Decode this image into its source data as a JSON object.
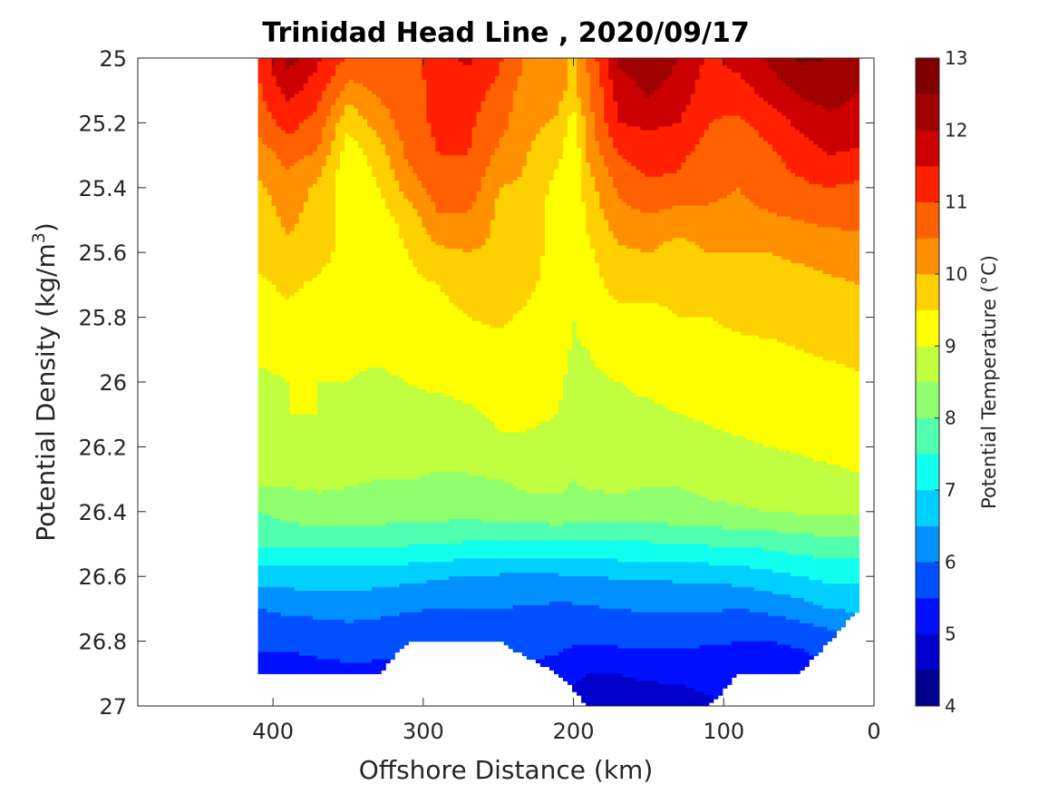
{
  "chart_data": {
    "type": "heatmap",
    "subtype": "filled-contour",
    "title": "Trinidad Head Line , 2020/09/17",
    "xlabel": "Offshore Distance (km)",
    "ylabel_prefix": "Potential Density (kg/m",
    "ylabel_exp": "3",
    "ylabel_suffix": ")",
    "xlim": [
      490,
      0
    ],
    "x_reversed": true,
    "ylim": [
      25,
      27
    ],
    "y_reversed": true,
    "x_ticks": [
      400,
      300,
      200,
      100,
      0
    ],
    "y_ticks": [
      25,
      25.2,
      25.4,
      25.6,
      25.8,
      26,
      26.2,
      26.4,
      26.6,
      26.8,
      27
    ],
    "x_tick_labels": [
      "400",
      "300",
      "200",
      "100",
      "0"
    ],
    "y_tick_labels": [
      "25",
      "25.2",
      "25.4",
      "25.6",
      "25.8",
      "26",
      "26.2",
      "26.4",
      "26.6",
      "26.8",
      "27"
    ],
    "grid": false,
    "colorbar": {
      "label": "Potential Temperature (°C)",
      "min": 4,
      "max": 13,
      "step": 0.5,
      "ticks": [
        4,
        5,
        6,
        7,
        8,
        9,
        10,
        11,
        12,
        13
      ],
      "tick_labels": [
        "4",
        "5",
        "6",
        "7",
        "8",
        "9",
        "10",
        "11",
        "12",
        "13"
      ],
      "colors": [
        "#00008f",
        "#0000cc",
        "#0010ff",
        "#0050ff",
        "#0090ff",
        "#00d0ff",
        "#10ffef",
        "#50ffaf",
        "#90ff6f",
        "#bfff40",
        "#ffff00",
        "#ffd000",
        "#ff9000",
        "#ff6000",
        "#ff2000",
        "#cc0000",
        "#9f0000",
        "#800000"
      ],
      "position": "right"
    },
    "x": [
      410,
      390,
      370,
      350,
      330,
      310,
      290,
      270,
      250,
      230,
      210,
      200,
      190,
      170,
      150,
      130,
      110,
      90,
      70,
      50,
      30,
      10
    ],
    "density": [
      25.0,
      25.1,
      25.2,
      25.3,
      25.4,
      25.5,
      25.6,
      25.7,
      25.8,
      25.9,
      26.0,
      26.1,
      26.2,
      26.3,
      26.4,
      26.5,
      26.6,
      26.7,
      26.8,
      26.9,
      27.0
    ],
    "temperature": [
      [
        11.1,
        12.2,
        11.6,
        10.9,
        10.6,
        10.8,
        11.3,
        11.6,
        11.1,
        10.4,
        10.2,
        9.9,
        10.6,
        12.1,
        12.4,
        12.0,
        11.4,
        11.7,
        12.1,
        12.6,
        12.5,
        12.3
      ],
      [
        10.9,
        11.7,
        11.2,
        10.3,
        10.6,
        10.8,
        11.1,
        11.2,
        10.9,
        10.2,
        10.1,
        9.9,
        10.4,
        11.7,
        12.1,
        11.8,
        11.2,
        11.3,
        11.7,
        12.1,
        12.2,
        12.0
      ],
      [
        10.7,
        11.2,
        10.8,
        9.6,
        10.2,
        10.8,
        11.1,
        11.1,
        10.7,
        10.1,
        9.95,
        9.2,
        10.3,
        11.5,
        11.6,
        11.5,
        11.0,
        10.9,
        11.2,
        11.6,
        11.9,
        11.8
      ],
      [
        10.2,
        10.7,
        10.4,
        9.2,
        9.7,
        10.6,
        11.0,
        11.0,
        10.4,
        10.0,
        9.6,
        9.1,
        10.1,
        11.0,
        11.2,
        11.1,
        10.8,
        10.6,
        10.9,
        11.2,
        11.5,
        11.4
      ],
      [
        9.9,
        10.3,
        9.9,
        9.1,
        9.5,
        10.2,
        10.8,
        10.8,
        10.0,
        9.9,
        9.3,
        9.1,
        9.8,
        10.6,
        10.9,
        10.9,
        10.7,
        10.5,
        10.8,
        10.9,
        11.0,
        10.9
      ],
      [
        9.7,
        10.1,
        9.8,
        9.2,
        9.2,
        9.7,
        10.4,
        10.4,
        9.9,
        9.8,
        9.2,
        9.05,
        9.6,
        10.3,
        10.4,
        10.2,
        10.3,
        10.3,
        10.4,
        10.5,
        10.6,
        10.6
      ],
      [
        9.7,
        9.9,
        9.7,
        9.3,
        9.2,
        9.5,
        9.9,
        10.0,
        9.9,
        9.7,
        9.3,
        9.0,
        9.4,
        9.9,
        10.0,
        9.8,
        10.0,
        10.0,
        10.0,
        10.1,
        10.2,
        10.3
      ],
      [
        9.4,
        9.6,
        9.4,
        9.25,
        9.2,
        9.35,
        9.5,
        9.8,
        9.8,
        9.6,
        9.25,
        9.0,
        9.3,
        9.7,
        9.6,
        9.6,
        9.7,
        9.8,
        9.8,
        9.8,
        9.9,
        10.0
      ],
      [
        9.2,
        9.4,
        9.2,
        9.15,
        9.1,
        9.2,
        9.3,
        9.5,
        9.6,
        9.4,
        9.2,
        9.0,
        9.15,
        9.35,
        9.4,
        9.5,
        9.5,
        9.6,
        9.6,
        9.6,
        9.7,
        9.8
      ],
      [
        9.1,
        9.15,
        9.1,
        9.05,
        9.05,
        9.1,
        9.15,
        9.25,
        9.35,
        9.3,
        9.15,
        8.95,
        9.0,
        9.15,
        9.2,
        9.3,
        9.35,
        9.4,
        9.45,
        9.5,
        9.55,
        9.6
      ],
      [
        8.9,
        9.0,
        9.0,
        9.0,
        8.95,
        9.0,
        9.05,
        9.1,
        9.15,
        9.2,
        9.05,
        8.9,
        8.95,
        9.0,
        9.05,
        9.1,
        9.15,
        9.2,
        9.3,
        9.35,
        9.4,
        9.45
      ],
      [
        8.95,
        9.0,
        9.0,
        8.95,
        8.95,
        8.95,
        8.9,
        8.95,
        9.05,
        9.1,
        9.0,
        8.85,
        8.9,
        8.95,
        8.95,
        9.0,
        9.05,
        9.1,
        9.15,
        9.2,
        9.3,
        9.3
      ],
      [
        8.7,
        8.75,
        8.75,
        8.75,
        8.7,
        8.7,
        8.7,
        8.75,
        8.95,
        8.9,
        8.8,
        8.7,
        8.75,
        8.85,
        8.9,
        8.85,
        8.9,
        8.95,
        9.0,
        9.05,
        9.1,
        9.2
      ],
      [
        8.6,
        8.6,
        8.6,
        8.55,
        8.5,
        8.5,
        8.45,
        8.45,
        8.5,
        8.6,
        8.6,
        8.5,
        8.6,
        8.65,
        8.55,
        8.55,
        8.65,
        8.7,
        8.75,
        8.85,
        8.9,
        8.95
      ],
      [
        8.0,
        8.2,
        8.35,
        8.35,
        8.3,
        8.25,
        8.2,
        8.2,
        8.25,
        8.35,
        8.4,
        8.35,
        8.3,
        8.3,
        8.3,
        8.35,
        8.4,
        8.45,
        8.5,
        8.55,
        8.6,
        8.6
      ],
      [
        7.6,
        7.6,
        7.6,
        7.55,
        7.55,
        7.55,
        7.5,
        7.45,
        7.4,
        7.4,
        7.4,
        7.4,
        7.45,
        7.45,
        7.45,
        7.5,
        7.55,
        7.6,
        7.65,
        7.75,
        7.8,
        7.8
      ],
      [
        6.7,
        6.75,
        6.75,
        6.75,
        6.7,
        6.65,
        6.55,
        6.5,
        6.45,
        6.4,
        6.45,
        6.5,
        6.5,
        6.55,
        6.55,
        6.6,
        6.65,
        6.7,
        6.85,
        7.0,
        7.15,
        7.15
      ],
      [
        6.0,
        6.1,
        6.15,
        6.2,
        6.15,
        6.05,
        6.0,
        6.0,
        6.0,
        5.95,
        5.9,
        5.9,
        5.95,
        6.0,
        6.05,
        6.05,
        6.05,
        6.0,
        6.1,
        6.25,
        6.5,
        6.6
      ],
      [
        5.6,
        5.6,
        5.65,
        5.7,
        5.65,
        5.6,
        5.6,
        5.6,
        5.65,
        5.65,
        5.6,
        5.55,
        5.55,
        5.6,
        5.6,
        5.6,
        5.55,
        5.5,
        5.5,
        5.55,
        5.7,
        5.7
      ],
      [
        5.3,
        5.3,
        5.35,
        5.4,
        5.4,
        5.4,
        5.4,
        5.4,
        5.4,
        5.4,
        5.35,
        5.2,
        5.0,
        5.0,
        5.1,
        5.1,
        5.2,
        5.3,
        5.3,
        5.3,
        5.4,
        5.4
      ],
      [
        5.0,
        5.0,
        5.0,
        5.0,
        5.0,
        5.0,
        5.0,
        5.0,
        5.0,
        4.9,
        4.8,
        4.6,
        4.6,
        4.7,
        4.7,
        4.8,
        4.9,
        5.0,
        5.0,
        5.0,
        5.0,
        5.0
      ]
    ],
    "deepest_density": [
      26.9,
      26.9,
      26.9,
      26.9,
      26.9,
      26.8,
      26.8,
      26.8,
      26.8,
      26.85,
      26.9,
      26.95,
      27.0,
      27.0,
      27.0,
      27.0,
      27.0,
      26.9,
      26.9,
      26.9,
      26.8,
      26.7
    ],
    "shallowest_density": [
      25,
      25,
      25,
      25,
      25,
      25,
      25,
      25,
      25,
      25,
      25,
      25,
      25,
      25,
      25,
      25,
      25,
      25,
      25,
      25,
      25,
      25
    ]
  }
}
